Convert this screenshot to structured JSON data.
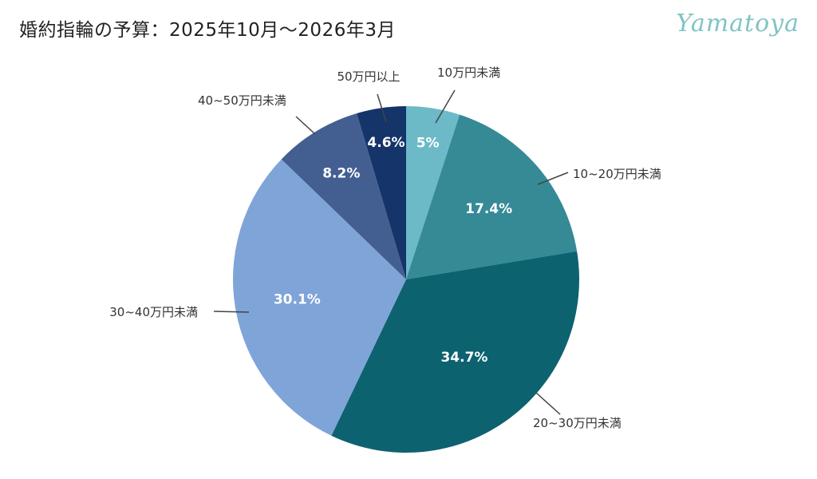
{
  "header": {
    "title": "婚約指輪の予算：2025年10月〜2026年3月",
    "brand": "Yamatoya"
  },
  "chart_data": {
    "type": "pie",
    "title": "婚約指輪の予算：2025年10月〜2026年3月",
    "start": "12 o'clock, clockwise",
    "categories": [
      "10万円未満",
      "10~20万円未満",
      "20~30万円未満",
      "30~40万円未満",
      "40~50万円未満",
      "50万円以上"
    ],
    "values": [
      5.0,
      17.4,
      34.7,
      30.1,
      8.2,
      4.6
    ],
    "value_labels": [
      "5%",
      "17.4%",
      "34.7%",
      "30.1%",
      "8.2%",
      "4.6%"
    ],
    "colors": [
      "#6cbac8",
      "#358a96",
      "#0d6270",
      "#7fa4d8",
      "#435f92",
      "#14346a"
    ]
  }
}
